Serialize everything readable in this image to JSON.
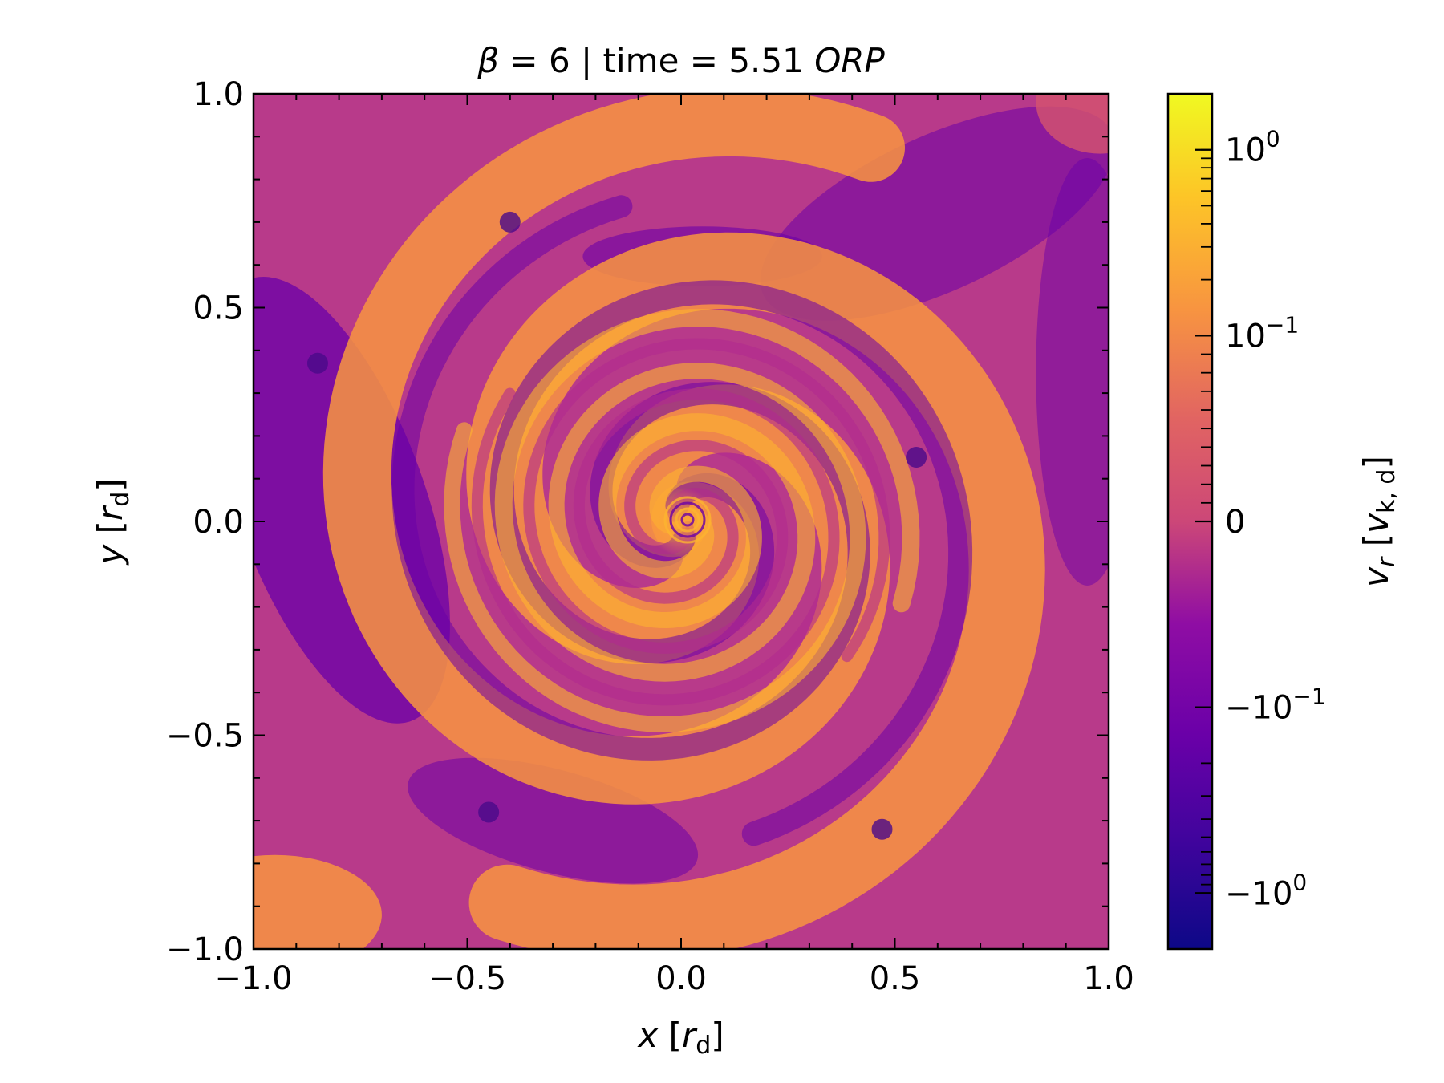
{
  "chart_data": {
    "type": "heatmap",
    "title": {
      "prefix": "β = ",
      "beta": "6",
      "mid": " | time = ",
      "time": "5.51",
      "unit": "ORP"
    },
    "x_label": {
      "var": "x",
      "unit_base": "r",
      "unit_sub": "d"
    },
    "y_label": {
      "var": "y",
      "unit_base": "r",
      "unit_sub": "d"
    },
    "xlim": [
      -1.0,
      1.0
    ],
    "ylim": [
      -1.0,
      1.0
    ],
    "x_ticks": [
      -1.0,
      -0.5,
      0.0,
      0.5,
      1.0
    ],
    "x_tick_labels": [
      "−1.0",
      "−0.5",
      "0.0",
      "0.5",
      "1.0"
    ],
    "y_ticks": [
      -1.0,
      -0.5,
      0.0,
      0.5,
      1.0
    ],
    "y_tick_labels": [
      "−1.0",
      "−0.5",
      "0.0",
      "0.5",
      "1.0"
    ],
    "minor_tick_step": 0.1,
    "colormap": "plasma",
    "colorbar": {
      "scale": "symlog",
      "linthresh": 0.1,
      "vmin": -2.0,
      "vmax": 2.0,
      "label": {
        "var": "v",
        "var_sub": "r",
        "unit_base": "v",
        "unit_sub": "k, d"
      },
      "ticks": [
        {
          "value": 1,
          "base": "10",
          "exp": "0"
        },
        {
          "value": 0.1,
          "base": "10",
          "exp": "−1"
        },
        {
          "value": 0,
          "base": "0",
          "exp": ""
        },
        {
          "value": -0.1,
          "base": "−10",
          "exp": "−1"
        },
        {
          "value": -1,
          "base": "−10",
          "exp": "0"
        }
      ]
    },
    "colors": {
      "dark_purple": "#6a00a8",
      "magenta": "#b12a90",
      "pink": "#d5546e",
      "orange": "#f89540",
      "gold": "#fdb42f",
      "yellow": "#f0f921",
      "navy": "#0d0887"
    }
  }
}
